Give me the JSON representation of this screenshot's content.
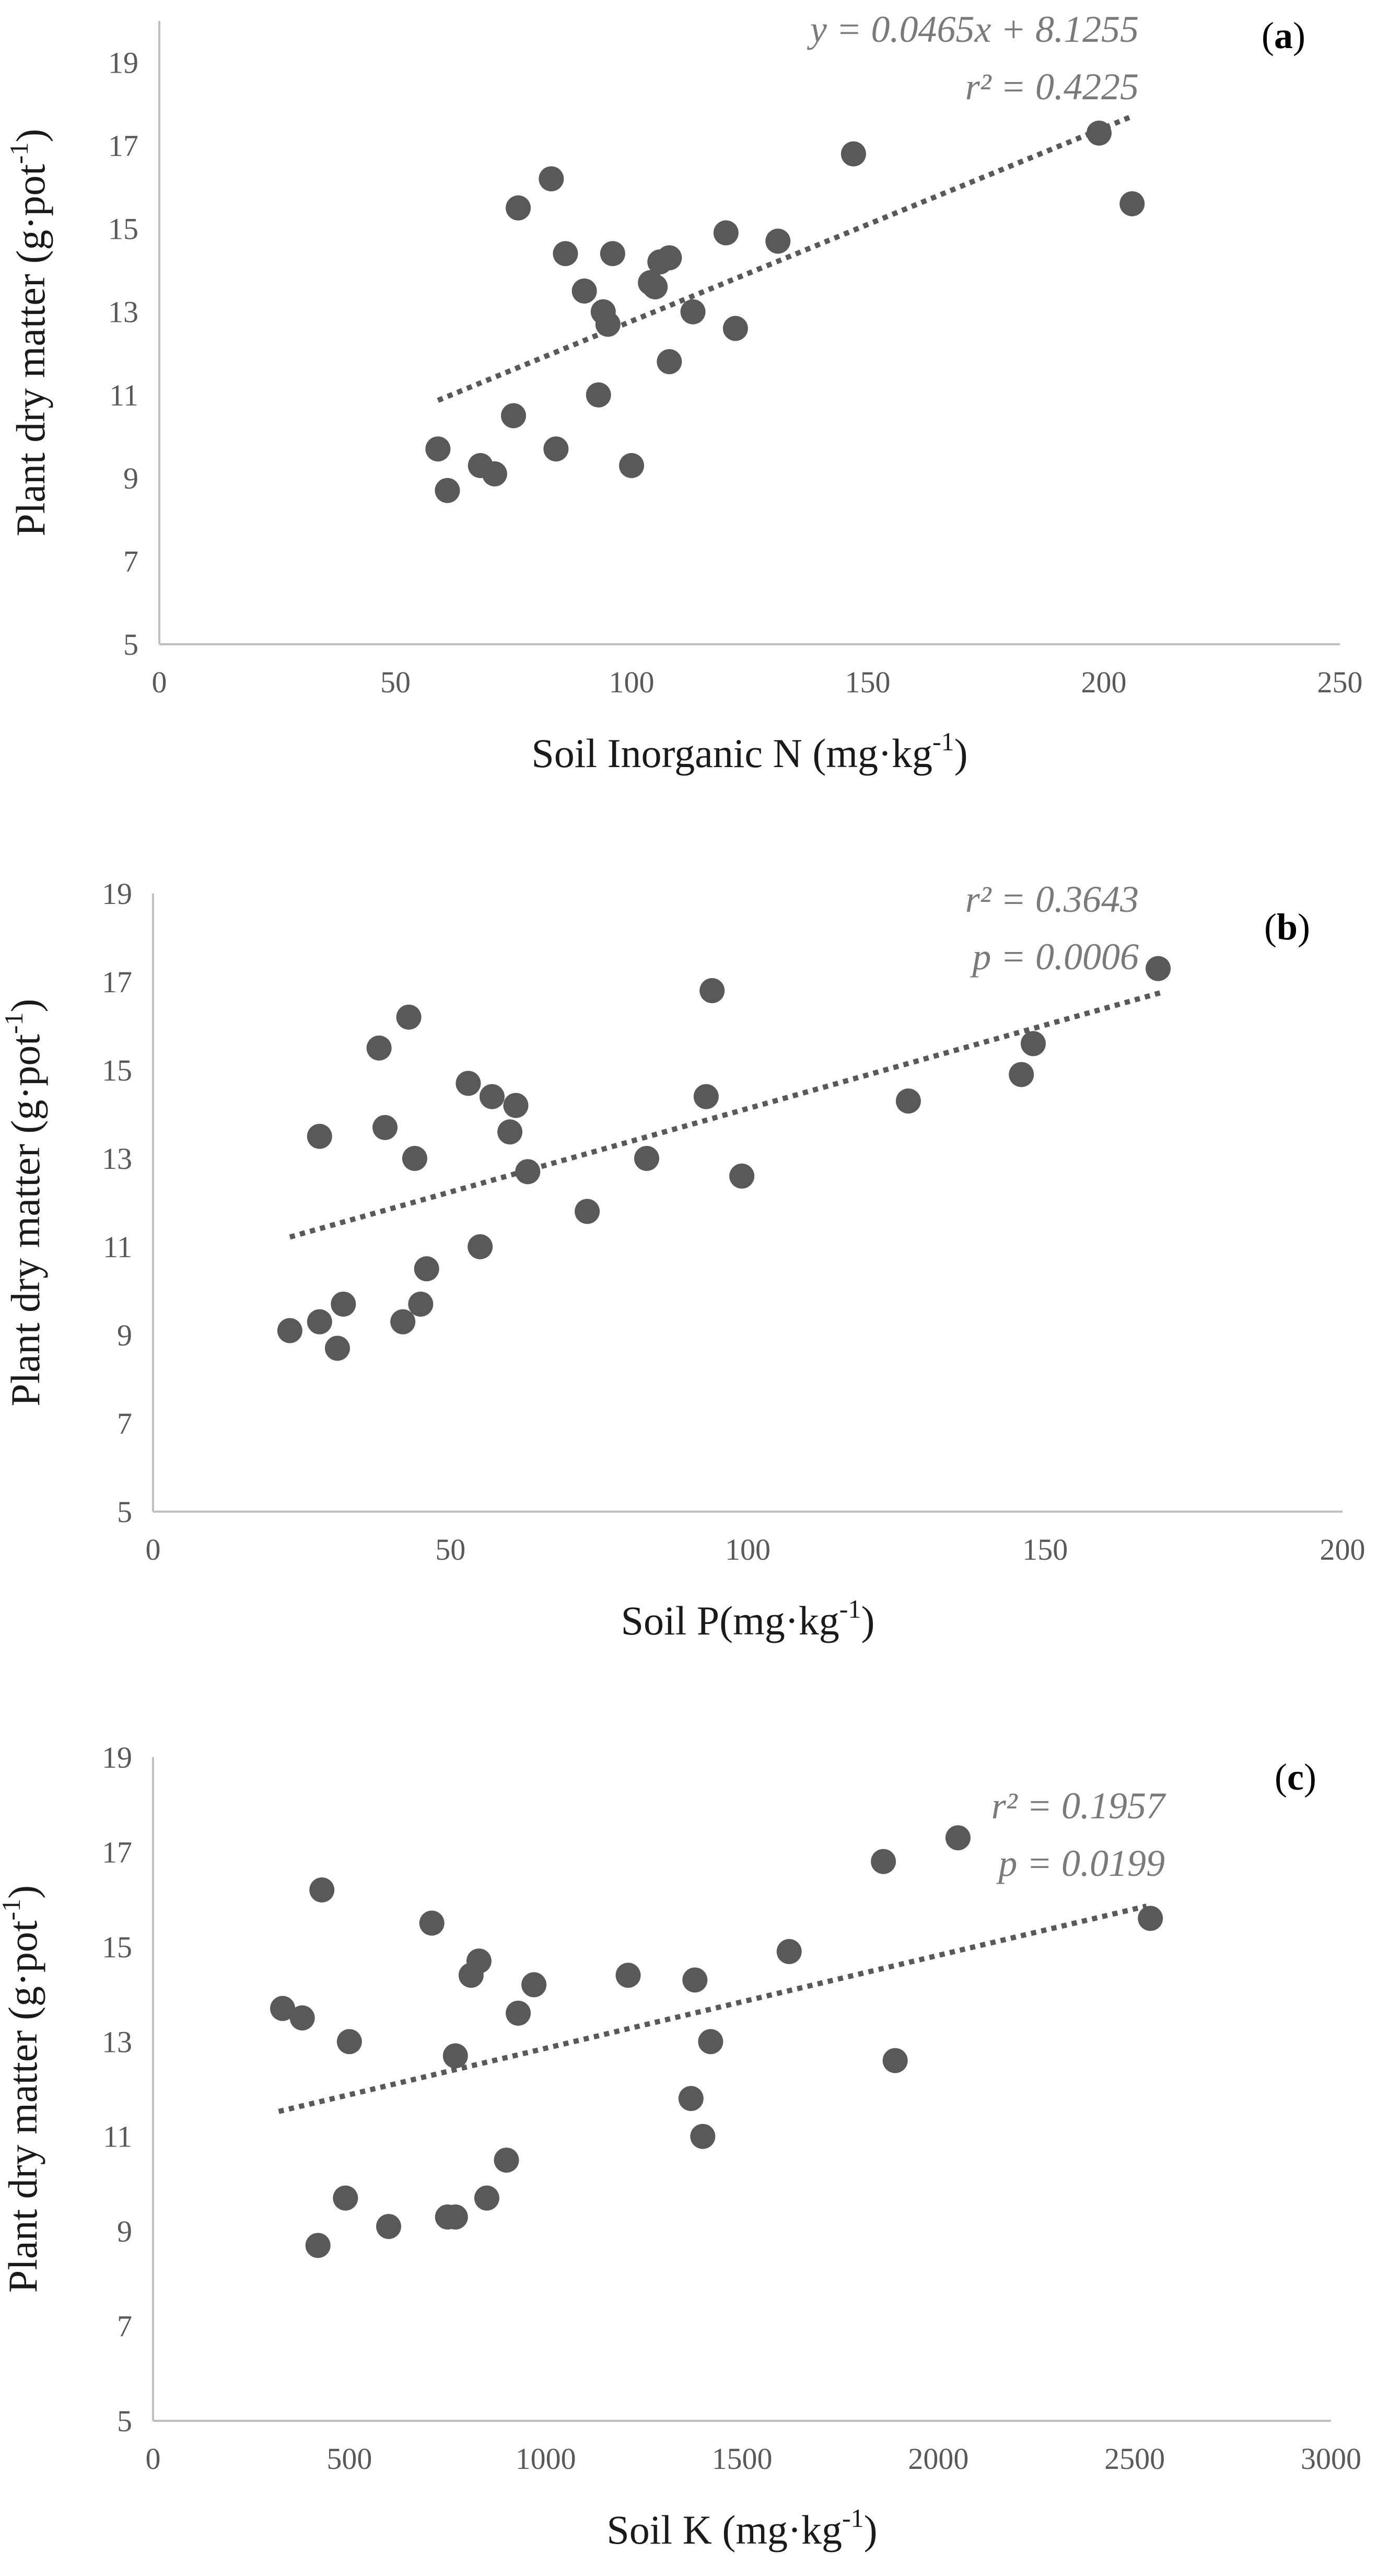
{
  "colors": {
    "points": "#595959",
    "trendline": "#595959",
    "axis": "#bfbfbf",
    "ticks": "#595959"
  },
  "chart_data": [
    {
      "type": "scatter",
      "panel_label": "a",
      "xlabel": "Soil Inorganic N (mg·kg",
      "xlabel_sup": "-1",
      "xlabel_end": ")",
      "ylabel": "Plant dry matter (g·pot",
      "ylabel_sup": "-1",
      "ylabel_end": ")",
      "xlim": [
        0,
        250
      ],
      "ylim": [
        5,
        20
      ],
      "xticks": [
        "0",
        "50",
        "100",
        "150",
        "200",
        "250"
      ],
      "yticks": [
        "5",
        "7",
        "9",
        "11",
        "13",
        "15",
        "17",
        "19"
      ],
      "annotations": [
        "y = 0.0465x + 8.1255",
        "r² = 0.4225"
      ],
      "trendline": {
        "type": "linear",
        "slope": 0.0465,
        "intercept": 8.1255,
        "x_range": [
          59,
          206
        ]
      },
      "points": [
        {
          "x": 59,
          "y": 9.7
        },
        {
          "x": 61,
          "y": 8.7
        },
        {
          "x": 68,
          "y": 9.3
        },
        {
          "x": 71,
          "y": 9.1
        },
        {
          "x": 75,
          "y": 10.5
        },
        {
          "x": 76,
          "y": 15.5
        },
        {
          "x": 83,
          "y": 16.2
        },
        {
          "x": 84,
          "y": 9.7
        },
        {
          "x": 86,
          "y": 14.4
        },
        {
          "x": 90,
          "y": 13.5
        },
        {
          "x": 93,
          "y": 11.0
        },
        {
          "x": 94,
          "y": 13.0
        },
        {
          "x": 95,
          "y": 12.7
        },
        {
          "x": 96,
          "y": 14.4
        },
        {
          "x": 100,
          "y": 9.3
        },
        {
          "x": 104,
          "y": 13.7
        },
        {
          "x": 105,
          "y": 13.6
        },
        {
          "x": 106,
          "y": 14.2
        },
        {
          "x": 108,
          "y": 14.3
        },
        {
          "x": 108,
          "y": 11.8
        },
        {
          "x": 113,
          "y": 13.0
        },
        {
          "x": 120,
          "y": 14.9
        },
        {
          "x": 122,
          "y": 12.6
        },
        {
          "x": 131,
          "y": 14.7
        },
        {
          "x": 147,
          "y": 16.8
        },
        {
          "x": 199,
          "y": 17.3
        },
        {
          "x": 206,
          "y": 15.6
        }
      ]
    },
    {
      "type": "scatter",
      "panel_label": "b",
      "xlabel": "Soil P(mg·kg",
      "xlabel_sup": "-1",
      "xlabel_end": ")",
      "ylabel": "Plant dry matter (g·pot",
      "ylabel_sup": "-1",
      "ylabel_end": ")",
      "xlim": [
        0,
        200
      ],
      "ylim": [
        5,
        19
      ],
      "xticks": [
        "0",
        "50",
        "100",
        "150",
        "200"
      ],
      "yticks": [
        "5",
        "7",
        "9",
        "11",
        "13",
        "15",
        "17",
        "19"
      ],
      "annotations": [
        "r² = 0.3643",
        "p = 0.0006"
      ],
      "trendline": {
        "type": "linear",
        "slope": 0.0378,
        "intercept": 10.35,
        "x_range": [
          23,
          170
        ]
      },
      "points": [
        {
          "x": 23,
          "y": 9.1
        },
        {
          "x": 28,
          "y": 9.3
        },
        {
          "x": 28,
          "y": 13.5
        },
        {
          "x": 31,
          "y": 8.7
        },
        {
          "x": 32,
          "y": 9.7
        },
        {
          "x": 38,
          "y": 15.5
        },
        {
          "x": 39,
          "y": 13.7
        },
        {
          "x": 42,
          "y": 9.3
        },
        {
          "x": 43,
          "y": 16.2
        },
        {
          "x": 44,
          "y": 13.0
        },
        {
          "x": 45,
          "y": 9.7
        },
        {
          "x": 46,
          "y": 10.5
        },
        {
          "x": 53,
          "y": 14.7
        },
        {
          "x": 55,
          "y": 11.0
        },
        {
          "x": 57,
          "y": 14.4
        },
        {
          "x": 60,
          "y": 13.6
        },
        {
          "x": 61,
          "y": 14.2
        },
        {
          "x": 63,
          "y": 12.7
        },
        {
          "x": 73,
          "y": 11.8
        },
        {
          "x": 83,
          "y": 13.0
        },
        {
          "x": 93,
          "y": 14.4
        },
        {
          "x": 94,
          "y": 16.8
        },
        {
          "x": 99,
          "y": 12.6
        },
        {
          "x": 127,
          "y": 14.3
        },
        {
          "x": 146,
          "y": 14.9
        },
        {
          "x": 148,
          "y": 15.6
        },
        {
          "x": 169,
          "y": 17.3
        }
      ]
    },
    {
      "type": "scatter",
      "panel_label": "c",
      "xlabel": "Soil K (mg·kg",
      "xlabel_sup": "-1",
      "xlabel_end": ")",
      "ylabel": "Plant dry matter (g·pot",
      "ylabel_sup": "-1",
      "ylabel_end": ")",
      "xlim": [
        0,
        3000
      ],
      "ylim": [
        5,
        19
      ],
      "xticks": [
        "0",
        "500",
        "1000",
        "1500",
        "2000",
        "2500",
        "3000"
      ],
      "yticks": [
        "5",
        "7",
        "9",
        "11",
        "13",
        "15",
        "17",
        "19"
      ],
      "annotations": [
        "r² = 0.1957",
        "p = 0.0199"
      ],
      "trendline": {
        "type": "linear",
        "slope": 0.00196,
        "intercept": 10.9,
        "x_range": [
          320,
          2530
        ]
      },
      "points": [
        {
          "x": 330,
          "y": 13.7
        },
        {
          "x": 380,
          "y": 13.5
        },
        {
          "x": 420,
          "y": 8.7
        },
        {
          "x": 430,
          "y": 16.2
        },
        {
          "x": 490,
          "y": 9.7
        },
        {
          "x": 500,
          "y": 13.0
        },
        {
          "x": 600,
          "y": 9.1
        },
        {
          "x": 710,
          "y": 15.5
        },
        {
          "x": 750,
          "y": 9.3
        },
        {
          "x": 770,
          "y": 9.3
        },
        {
          "x": 770,
          "y": 12.7
        },
        {
          "x": 810,
          "y": 14.4
        },
        {
          "x": 830,
          "y": 14.7
        },
        {
          "x": 850,
          "y": 9.7
        },
        {
          "x": 900,
          "y": 10.5
        },
        {
          "x": 930,
          "y": 13.6
        },
        {
          "x": 970,
          "y": 14.2
        },
        {
          "x": 1210,
          "y": 14.4
        },
        {
          "x": 1370,
          "y": 11.8
        },
        {
          "x": 1380,
          "y": 14.3
        },
        {
          "x": 1400,
          "y": 11.0
        },
        {
          "x": 1420,
          "y": 13.0
        },
        {
          "x": 1620,
          "y": 14.9
        },
        {
          "x": 1860,
          "y": 16.8
        },
        {
          "x": 1890,
          "y": 12.6
        },
        {
          "x": 2050,
          "y": 17.3
        },
        {
          "x": 2540,
          "y": 15.6
        }
      ]
    }
  ]
}
